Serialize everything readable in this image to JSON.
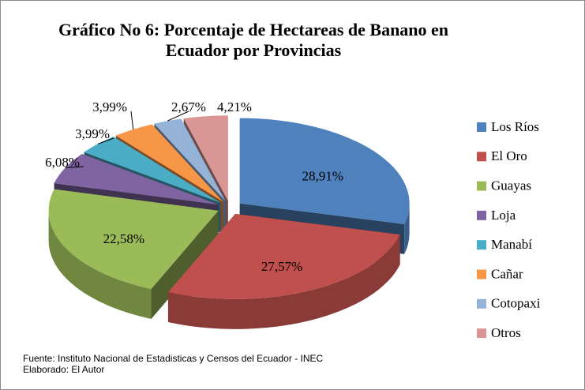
{
  "chart_data": {
    "type": "pie",
    "title": "Gráfico No 6: Porcentaje de Hectareas de Banano en Ecuador por Provincias",
    "categories": [
      "Los Ríos",
      "El Oro",
      "Guayas",
      "Loja",
      "Manabí",
      "Cañar",
      "Cotopaxi",
      "Otros"
    ],
    "values": [
      28.91,
      27.57,
      22.58,
      6.08,
      3.99,
      3.99,
      2.67,
      4.21
    ],
    "value_labels": [
      "28,91%",
      "27,57%",
      "22,58%",
      "6,08%",
      "3,99%",
      "3,99%",
      "2,67%",
      "4,21%"
    ],
    "colors": [
      "#4f81bd",
      "#c0504d",
      "#9bbb59",
      "#8064a2",
      "#4bacc6",
      "#f79646",
      "#95b3d7",
      "#d99694"
    ],
    "legend": "right",
    "notes": [
      "Fuente: Instituto Nacional de Estadisticas y Censos del Ecuador - INEC",
      "Elaborado: El Autor"
    ]
  }
}
